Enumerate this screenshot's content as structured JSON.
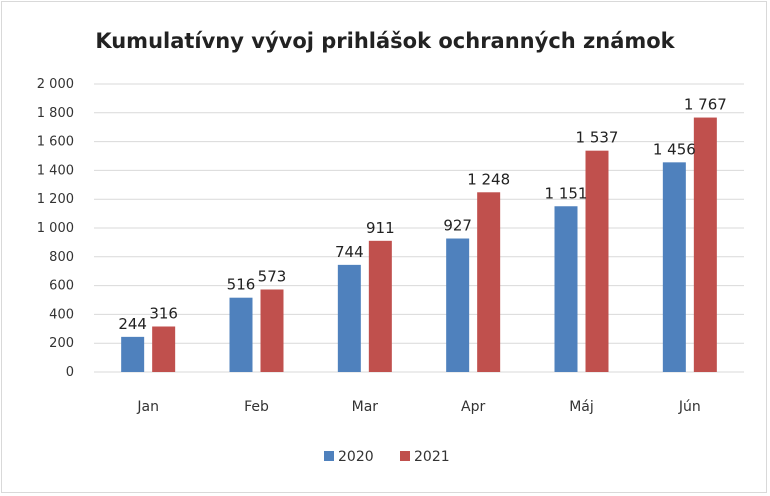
{
  "chart_data": {
    "type": "bar",
    "title": "Kumulatívny vývoj prihlášok ochranných známok",
    "xlabel": "",
    "ylabel": "",
    "categories": [
      "Jan",
      "Feb",
      "Mar",
      "Apr",
      "Máj",
      "Jún"
    ],
    "series": [
      {
        "name": "2020",
        "values": [
          244,
          516,
          744,
          927,
          1151,
          1456
        ],
        "labels": [
          "244",
          "516",
          "744",
          "927",
          "1 151",
          "1 456"
        ],
        "color": "#4f81bd"
      },
      {
        "name": "2021",
        "values": [
          316,
          573,
          911,
          1248,
          1537,
          1767
        ],
        "labels": [
          "316",
          "573",
          "911",
          "1 248",
          "1 537",
          "1 767"
        ],
        "color": "#c0504d"
      }
    ],
    "ylim": [
      0,
      2000
    ],
    "yticks": [
      0,
      200,
      400,
      600,
      800,
      1000,
      1200,
      1400,
      1600,
      1800,
      2000
    ],
    "ytick_labels": [
      "0",
      "200",
      "400",
      "600",
      "800",
      "1 000",
      "1 200",
      "1 400",
      "1 600",
      "1 800",
      "2 000"
    ],
    "grid": true,
    "grid_color": "#d9d9d9",
    "legend_position": "bottom"
  }
}
